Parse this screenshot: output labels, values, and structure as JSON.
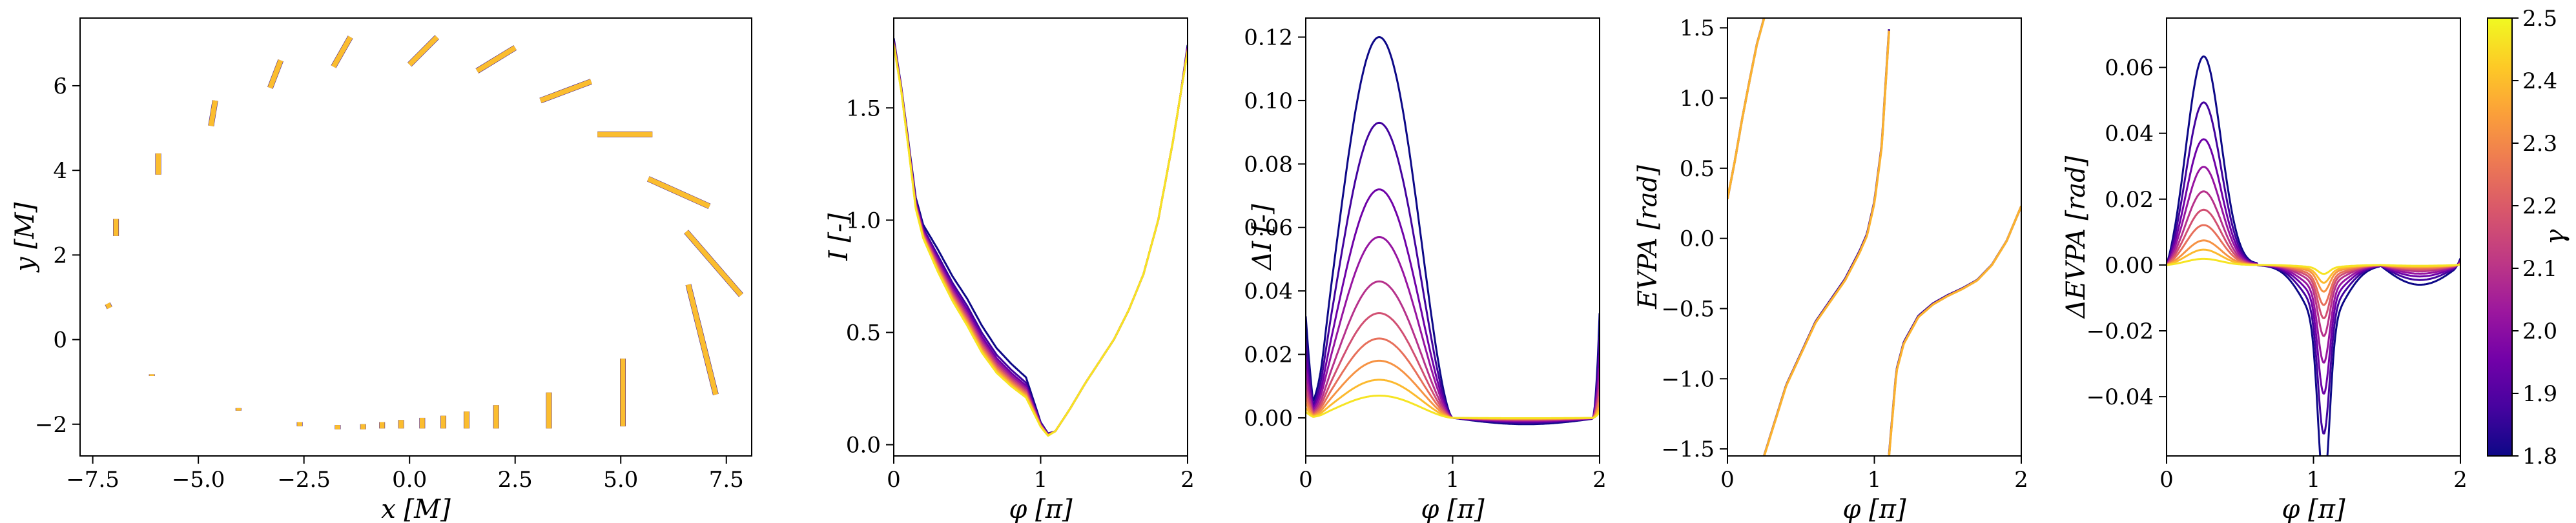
{
  "colormap": {
    "name": "plasma",
    "stops": [
      "#0d0887",
      "#46039f",
      "#7201a8",
      "#9c179e",
      "#bd3786",
      "#d8576b",
      "#ed7953",
      "#fb9f3a",
      "#fdca26",
      "#f0f921"
    ]
  },
  "chart_data": [
    {
      "type": "scatter",
      "xlabel": "x [M]",
      "ylabel": "y [M]",
      "xlim": [
        -7.8,
        8.1
      ],
      "ylim": [
        -2.75,
        7.6
      ],
      "xticks": [
        -7.5,
        -5.0,
        -2.5,
        0.0,
        2.5,
        5.0,
        7.5
      ],
      "xtick_labels": [
        "−7.5",
        "−5.0",
        "−2.5",
        "0.0",
        "2.5",
        "5.0",
        "7.5"
      ],
      "yticks": [
        -2,
        0,
        2,
        4,
        6
      ],
      "ytick_labels": [
        "−2",
        "0",
        "2",
        "4",
        "6"
      ],
      "grid": false,
      "segments": [
        {
          "x1": -7.15,
          "y1": 0.85,
          "x2": -7.1,
          "y2": 0.75
        },
        {
          "x1": -6.95,
          "y1": 2.85,
          "x2": -6.95,
          "y2": 2.45
        },
        {
          "x1": -5.95,
          "y1": 4.4,
          "x2": -5.95,
          "y2": 3.9
        },
        {
          "x1": -4.6,
          "y1": 5.65,
          "x2": -4.7,
          "y2": 5.05
        },
        {
          "x1": -3.05,
          "y1": 6.6,
          "x2": -3.3,
          "y2": 5.95
        },
        {
          "x1": -1.4,
          "y1": 7.15,
          "x2": -1.8,
          "y2": 6.45
        },
        {
          "x1": 0.65,
          "y1": 7.15,
          "x2": 0.0,
          "y2": 6.5
        },
        {
          "x1": 2.5,
          "y1": 6.9,
          "x2": 1.6,
          "y2": 6.35
        },
        {
          "x1": 4.3,
          "y1": 6.1,
          "x2": 3.1,
          "y2": 5.65
        },
        {
          "x1": 5.75,
          "y1": 4.85,
          "x2": 4.45,
          "y2": 4.85
        },
        {
          "x1": 7.1,
          "y1": 3.15,
          "x2": 5.65,
          "y2": 3.8
        },
        {
          "x1": 7.85,
          "y1": 1.05,
          "x2": 6.55,
          "y2": 2.55
        },
        {
          "x1": 7.25,
          "y1": -1.3,
          "x2": 6.6,
          "y2": 1.3
        },
        {
          "x1": 5.05,
          "y1": -0.45,
          "x2": 5.05,
          "y2": -2.05
        },
        {
          "x1": 3.3,
          "y1": -1.25,
          "x2": 3.3,
          "y2": -2.1
        },
        {
          "x1": 2.05,
          "y1": -1.55,
          "x2": 2.05,
          "y2": -2.1
        },
        {
          "x1": 1.35,
          "y1": -1.7,
          "x2": 1.35,
          "y2": -2.1
        },
        {
          "x1": 0.8,
          "y1": -1.8,
          "x2": 0.8,
          "y2": -2.1
        },
        {
          "x1": 0.3,
          "y1": -1.85,
          "x2": 0.3,
          "y2": -2.1
        },
        {
          "x1": -0.2,
          "y1": -1.9,
          "x2": -0.2,
          "y2": -2.1
        },
        {
          "x1": -0.65,
          "y1": -1.95,
          "x2": -0.65,
          "y2": -2.1
        },
        {
          "x1": -1.1,
          "y1": -2.0,
          "x2": -1.1,
          "y2": -2.12
        },
        {
          "x1": -1.7,
          "y1": -2.02,
          "x2": -1.7,
          "y2": -2.12
        },
        {
          "x1": -2.6,
          "y1": -1.95,
          "x2": -2.6,
          "y2": -2.05
        },
        {
          "x1": -4.05,
          "y1": -1.62,
          "x2": -4.05,
          "y2": -1.68
        },
        {
          "x1": -6.1,
          "y1": -0.82,
          "x2": -6.1,
          "y2": -0.86
        }
      ]
    },
    {
      "type": "line",
      "xlabel": "φ [π]",
      "ylabel": "I [-]",
      "xlim": [
        0,
        2
      ],
      "ylim": [
        -0.05,
        1.9
      ],
      "xticks": [
        0,
        1,
        2
      ],
      "xtick_labels": [
        "0",
        "1",
        "2"
      ],
      "yticks": [
        0.0,
        0.5,
        1.0,
        1.5
      ],
      "ytick_labels": [
        "0.0",
        "0.5",
        "1.0",
        "1.5"
      ],
      "grid": false,
      "x": [
        0,
        0.05,
        0.1,
        0.15,
        0.2,
        0.3,
        0.4,
        0.5,
        0.6,
        0.7,
        0.8,
        0.9,
        1.0,
        1.05,
        1.1,
        1.2,
        1.3,
        1.4,
        1.5,
        1.6,
        1.7,
        1.8,
        1.9,
        1.95,
        2.0
      ],
      "series_low_gamma": [
        1.81,
        1.6,
        1.35,
        1.1,
        0.98,
        0.87,
        0.75,
        0.65,
        0.53,
        0.43,
        0.36,
        0.3,
        0.1,
        0.05,
        0.06,
        0.16,
        0.27,
        0.37,
        0.47,
        0.6,
        0.76,
        1.0,
        1.35,
        1.55,
        1.78
      ],
      "series_high_gamma": [
        1.78,
        1.58,
        1.32,
        1.05,
        0.92,
        0.77,
        0.64,
        0.53,
        0.41,
        0.32,
        0.26,
        0.21,
        0.08,
        0.04,
        0.06,
        0.16,
        0.27,
        0.37,
        0.47,
        0.6,
        0.76,
        1.0,
        1.35,
        1.55,
        1.75
      ],
      "n_curves": 10,
      "gamma_range": [
        1.8,
        2.5
      ]
    },
    {
      "type": "line",
      "xlabel": "φ [π]",
      "ylabel": "ΔI [-]",
      "xlim": [
        0,
        2
      ],
      "ylim": [
        -0.012,
        0.126
      ],
      "xticks": [
        0,
        1,
        2
      ],
      "xtick_labels": [
        "0",
        "1",
        "2"
      ],
      "yticks": [
        0.0,
        0.02,
        0.04,
        0.06,
        0.08,
        0.1,
        0.12
      ],
      "ytick_labels": [
        "0.00",
        "0.02",
        "0.04",
        "0.06",
        "0.08",
        "0.10",
        "0.12"
      ],
      "grid": false,
      "peaks": [
        0.12,
        0.093,
        0.072,
        0.057,
        0.043,
        0.033,
        0.025,
        0.018,
        0.012,
        0.007
      ]
    },
    {
      "type": "line",
      "xlabel": "φ [π]",
      "ylabel": "EVPA [rad]",
      "xlim": [
        0,
        2
      ],
      "ylim": [
        -1.55,
        1.57
      ],
      "xticks": [
        0,
        1,
        2
      ],
      "xtick_labels": [
        "0",
        "1",
        "2"
      ],
      "yticks": [
        -1.5,
        -1.0,
        -0.5,
        0.0,
        0.5,
        1.0,
        1.5
      ],
      "ytick_labels": [
        "−1.5",
        "−1.0",
        "−0.5",
        "0.0",
        "0.5",
        "1.0",
        "1.5"
      ],
      "grid": false,
      "branches": [
        {
          "x": [
            0,
            0.05,
            0.1,
            0.15,
            0.2,
            0.25
          ],
          "y": [
            0.28,
            0.55,
            0.85,
            1.12,
            1.38,
            1.57
          ]
        },
        {
          "x": [
            0.25,
            0.4,
            0.6,
            0.8,
            0.9,
            0.95,
            1.0,
            1.05,
            1.1
          ],
          "y": [
            -1.55,
            -1.05,
            -0.6,
            -0.3,
            -0.1,
            0.02,
            0.25,
            0.65,
            1.48
          ]
        },
        {
          "x": [
            1.1,
            1.15,
            1.2,
            1.3,
            1.4,
            1.5,
            1.6,
            1.7,
            1.8,
            1.9,
            2.0
          ],
          "y": [
            -1.55,
            -0.95,
            -0.75,
            -0.56,
            -0.47,
            -0.41,
            -0.36,
            -0.3,
            -0.19,
            -0.02,
            0.23
          ]
        }
      ]
    },
    {
      "type": "line",
      "xlabel": "φ [π]",
      "ylabel": "ΔEVPA [rad]",
      "xlim": [
        0,
        2
      ],
      "ylim": [
        -0.058,
        0.075
      ],
      "xticks": [
        0,
        1,
        2
      ],
      "xtick_labels": [
        "0",
        "1",
        "2"
      ],
      "yticks": [
        -0.04,
        -0.02,
        0.0,
        0.02,
        0.04,
        0.06
      ],
      "ytick_labels": [
        "−0.04",
        "−0.02",
        "0.00",
        "0.02",
        "0.04",
        "0.06"
      ],
      "grid": false,
      "peaks": [
        0.068,
        0.053,
        0.041,
        0.032,
        0.024,
        0.018,
        0.013,
        0.008,
        0.005,
        0.002
      ],
      "troughs": [
        -0.05,
        -0.038,
        -0.029,
        -0.022,
        -0.016,
        -0.012,
        -0.009,
        -0.006,
        -0.004,
        -0.002
      ]
    },
    {
      "type": "colorbar",
      "label": "γ",
      "range": [
        1.8,
        2.5
      ],
      "ticks": [
        1.8,
        1.9,
        2.0,
        2.1,
        2.2,
        2.3,
        2.4,
        2.5
      ],
      "tick_labels": [
        "1.8",
        "1.9",
        "2.0",
        "2.1",
        "2.2",
        "2.3",
        "2.4",
        "2.5"
      ]
    }
  ]
}
